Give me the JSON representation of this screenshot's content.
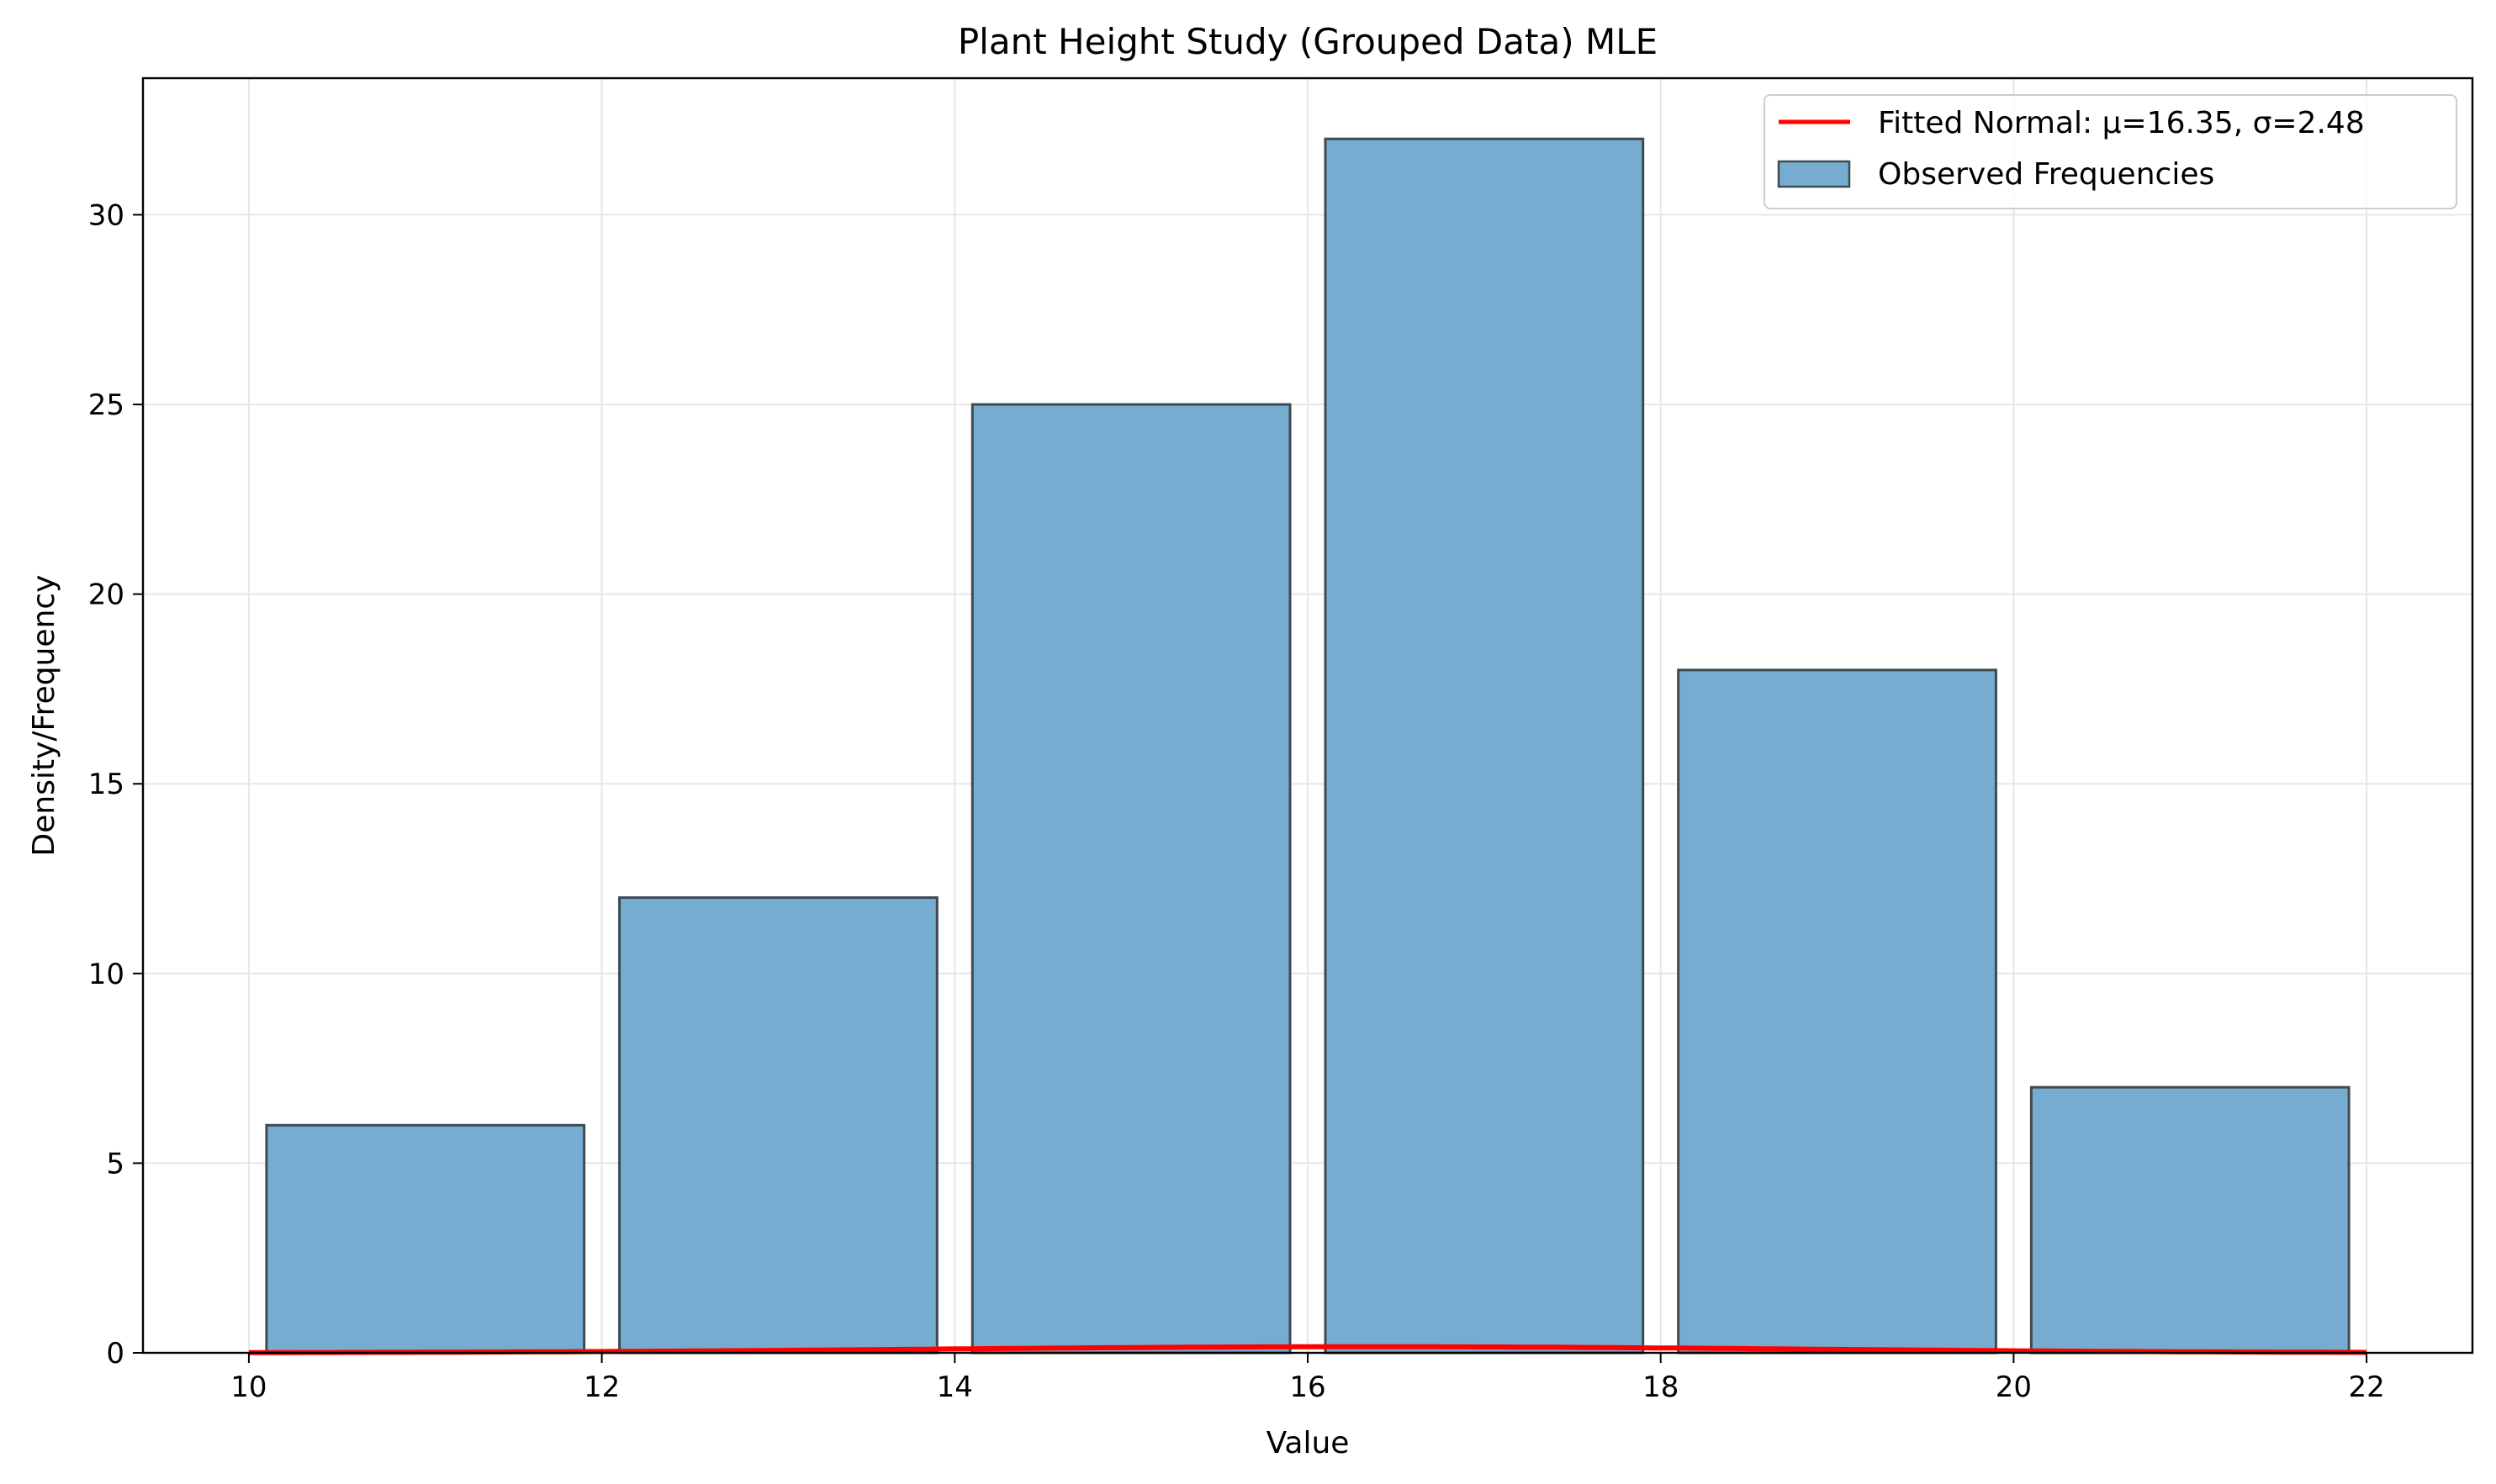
{
  "chart_data": {
    "type": "bar",
    "title": "Plant Height Study (Grouped Data) MLE",
    "xlabel": "Value",
    "ylabel": "Density/Frequency",
    "xlim": [
      9.4,
      22.6
    ],
    "ylim": [
      0,
      33.6
    ],
    "x_ticks": [
      10,
      12,
      14,
      16,
      18,
      20,
      22
    ],
    "y_ticks": [
      0,
      5,
      10,
      15,
      20,
      25,
      30
    ],
    "grid": true,
    "legend_position": "top-right",
    "series": [
      {
        "name": "Observed Frequencies",
        "kind": "histogram",
        "color": "#77acd1",
        "edge_color": "#3d4a52",
        "bins": [
          {
            "x0": 10,
            "x1": 12,
            "value": 6
          },
          {
            "x0": 12,
            "x1": 14,
            "value": 12
          },
          {
            "x0": 14,
            "x1": 16,
            "value": 25
          },
          {
            "x0": 16,
            "x1": 18,
            "value": 32
          },
          {
            "x0": 18,
            "x1": 20,
            "value": 18
          },
          {
            "x0": 20,
            "x1": 22,
            "value": 7
          }
        ]
      },
      {
        "name": "Fitted Normal: μ=16.35, σ=2.48",
        "kind": "line",
        "color": "#ff0000",
        "mu": 16.35,
        "sigma": 2.48,
        "x_range": [
          10,
          22
        ]
      }
    ]
  }
}
